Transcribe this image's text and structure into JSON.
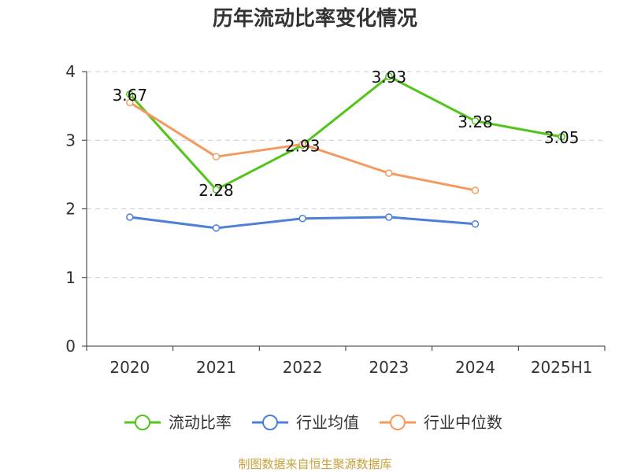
{
  "chart_data": {
    "type": "line",
    "title": "历年流动比率变化情况",
    "categories": [
      "2020",
      "2021",
      "2022",
      "2023",
      "2024",
      "2025H1"
    ],
    "ylim": [
      0,
      4
    ],
    "yticks": [
      "0",
      "1",
      "2",
      "3",
      "4"
    ],
    "grid": true,
    "legend_position": "bottom",
    "series": [
      {
        "name": "流动比率",
        "color": "#52c41a",
        "values": [
          3.67,
          2.28,
          2.93,
          3.93,
          3.28,
          3.05
        ],
        "labels": [
          "3.67",
          "2.28",
          "2.93",
          "3.93",
          "3.28",
          "3.05"
        ]
      },
      {
        "name": "行业均值",
        "color": "#4e7fd8",
        "values": [
          1.88,
          1.72,
          1.86,
          1.88,
          1.78,
          null
        ]
      },
      {
        "name": "行业中位数",
        "color": "#f59a5f",
        "values": [
          3.55,
          2.76,
          2.94,
          2.52,
          2.27,
          null
        ]
      }
    ]
  },
  "source": {
    "text": "制图数据来自恒生聚源数据库",
    "color": "#c8a13a"
  }
}
